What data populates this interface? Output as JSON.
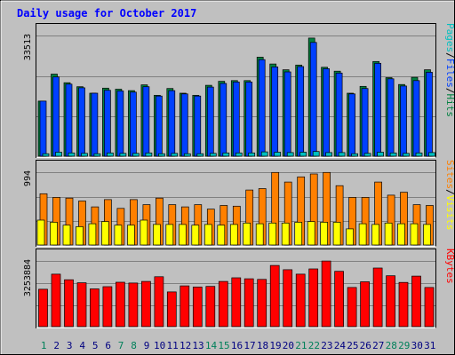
{
  "chart_data": [
    {
      "type": "bar",
      "title": "Daily usage for October 2017",
      "categories": [
        "1",
        "2",
        "3",
        "4",
        "5",
        "6",
        "7",
        "8",
        "9",
        "10",
        "11",
        "12",
        "13",
        "14",
        "15",
        "16",
        "17",
        "18",
        "19",
        "20",
        "21",
        "22",
        "23",
        "24",
        "25",
        "26",
        "27",
        "28",
        "29",
        "30",
        "31"
      ],
      "weekend_days": [
        "1",
        "7",
        "8",
        "14",
        "15",
        "21",
        "22",
        "28",
        "29"
      ],
      "ylabel_parts": [
        "Pages",
        "Files",
        "Hits"
      ],
      "ytick": "33513",
      "ylim": [
        0,
        33513
      ],
      "series": [
        {
          "name": "Hits",
          "color": "#008040",
          "values": [
            15300,
            22800,
            20400,
            19300,
            17500,
            18900,
            18600,
            18200,
            19800,
            16900,
            18800,
            17500,
            16900,
            19700,
            20800,
            21000,
            21000,
            27500,
            25600,
            24000,
            25300,
            32800,
            24700,
            23600,
            17500,
            19400,
            26300,
            21800,
            19900,
            21900,
            24000
          ]
        },
        {
          "name": "Files",
          "color": "#0040ff",
          "values": [
            15300,
            22000,
            20000,
            19000,
            17500,
            18300,
            18100,
            17800,
            19300,
            16700,
            18200,
            17300,
            16700,
            19200,
            20200,
            20600,
            20600,
            26800,
            24800,
            23400,
            24900,
            31600,
            24300,
            23100,
            17300,
            18800,
            25800,
            21500,
            19500,
            21000,
            23300
          ]
        },
        {
          "name": "Pages",
          "color": "#00c0c0",
          "values": [
            700,
            1100,
            900,
            800,
            700,
            900,
            800,
            800,
            900,
            700,
            800,
            700,
            700,
            800,
            900,
            900,
            900,
            1200,
            1100,
            1000,
            1100,
            1300,
            1000,
            1000,
            700,
            800,
            1100,
            900,
            800,
            900,
            1000
          ]
        }
      ]
    },
    {
      "type": "bar",
      "categories": [
        "1",
        "2",
        "3",
        "4",
        "5",
        "6",
        "7",
        "8",
        "9",
        "10",
        "11",
        "12",
        "13",
        "14",
        "15",
        "16",
        "17",
        "18",
        "19",
        "20",
        "21",
        "22",
        "23",
        "24",
        "25",
        "26",
        "27",
        "28",
        "29",
        "30",
        "31"
      ],
      "ylabel_parts": [
        "Sites",
        "Visits"
      ],
      "ytick": "994",
      "ylim": [
        0,
        994
      ],
      "series": [
        {
          "name": "Visits",
          "color": "#ff8000",
          "values": [
            700,
            650,
            640,
            600,
            520,
            620,
            500,
            620,
            550,
            640,
            550,
            520,
            550,
            490,
            540,
            530,
            750,
            770,
            990,
            860,
            930,
            970,
            990,
            810,
            650,
            650,
            860,
            680,
            720,
            550,
            540
          ]
        },
        {
          "name": "Sites",
          "color": "#ffff00",
          "values": [
            340,
            310,
            270,
            250,
            290,
            320,
            270,
            270,
            340,
            280,
            280,
            280,
            270,
            280,
            270,
            280,
            300,
            290,
            300,
            300,
            310,
            320,
            310,
            310,
            220,
            290,
            280,
            300,
            290,
            290,
            280
          ]
        }
      ]
    },
    {
      "type": "bar",
      "categories": [
        "1",
        "2",
        "3",
        "4",
        "5",
        "6",
        "7",
        "8",
        "9",
        "10",
        "11",
        "12",
        "13",
        "14",
        "15",
        "16",
        "17",
        "18",
        "19",
        "20",
        "21",
        "22",
        "23",
        "24",
        "25",
        "26",
        "27",
        "28",
        "29",
        "30",
        "31"
      ],
      "ylabel_parts": [
        "KBytes"
      ],
      "ytick": "3253884",
      "ylim": [
        0,
        3253884
      ],
      "series": [
        {
          "name": "KBytes",
          "color": "#ff0000",
          "values": [
            1850000,
            2600000,
            2320000,
            2170000,
            1870000,
            1980000,
            2200000,
            2160000,
            2240000,
            2470000,
            1720000,
            2020000,
            1960000,
            1990000,
            2240000,
            2420000,
            2370000,
            2340000,
            3030000,
            2820000,
            2600000,
            2860000,
            3250000,
            2740000,
            1940000,
            2220000,
            2900000,
            2520000,
            2190000,
            2500000,
            1940000
          ]
        }
      ]
    }
  ]
}
